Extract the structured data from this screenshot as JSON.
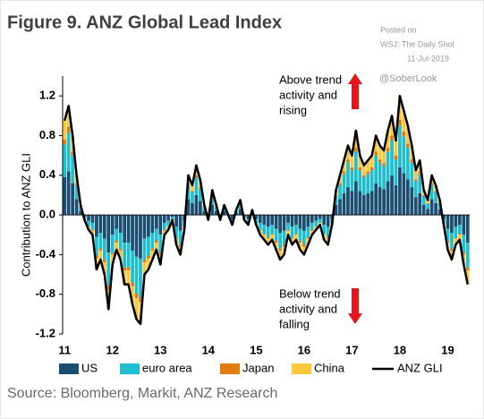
{
  "chart_data": {
    "type": "bar",
    "stacked": true,
    "title": "Figure 9. ANZ Global Lead Index",
    "ylabel": "Contribution to ANZ GLI",
    "annotations": {
      "above": [
        "Above trend",
        "activity and",
        "rising"
      ],
      "below": [
        "Below trend",
        "activity and",
        "falling"
      ]
    },
    "watermark": [
      "Posted on",
      "WSJ: The Daily Shot",
      "11-Jul-2019",
      "@SoberLook"
    ],
    "source": "Source: Bloomberg, Markit, ANZ Research",
    "categories": [
      "11",
      null,
      null,
      null,
      null,
      null,
      null,
      null,
      null,
      null,
      null,
      null,
      "12",
      null,
      null,
      null,
      null,
      null,
      null,
      null,
      null,
      null,
      null,
      null,
      "13",
      null,
      null,
      null,
      null,
      null,
      null,
      null,
      null,
      null,
      null,
      null,
      "14",
      null,
      null,
      null,
      null,
      null,
      null,
      null,
      null,
      null,
      null,
      null,
      "15",
      null,
      null,
      null,
      null,
      null,
      null,
      null,
      null,
      null,
      null,
      null,
      "16",
      null,
      null,
      null,
      null,
      null,
      null,
      null,
      null,
      null,
      null,
      null,
      "17",
      null,
      null,
      null,
      null,
      null,
      null,
      null,
      null,
      null,
      null,
      null,
      "18",
      null,
      null,
      null,
      null,
      null,
      null,
      null,
      null,
      null,
      null,
      null,
      "19",
      null,
      null,
      null,
      null,
      null
    ],
    "series": [
      {
        "name": "US",
        "color": "#1b4f72",
        "values": [
          0.38,
          0.44,
          0.32,
          0.16,
          0.04,
          -0.02,
          -0.06,
          -0.08,
          -0.22,
          -0.18,
          -0.24,
          -0.38,
          -0.2,
          -0.14,
          -0.18,
          -0.28,
          -0.28,
          -0.36,
          -0.42,
          -0.44,
          -0.24,
          -0.22,
          -0.18,
          -0.14,
          -0.2,
          -0.08,
          -0.06,
          -0.02,
          -0.12,
          -0.16,
          -0.06,
          0.16,
          0.12,
          0.2,
          0.14,
          0.04,
          -0.02,
          0.1,
          0.04,
          -0.02,
          0.04,
          0,
          -0.04,
          0.02,
          0.06,
          -0.02,
          -0.04,
          0.02,
          -0.04,
          -0.08,
          -0.1,
          -0.12,
          -0.1,
          -0.14,
          -0.18,
          -0.16,
          -0.08,
          -0.12,
          -0.1,
          -0.14,
          -0.16,
          -0.12,
          -0.08,
          -0.06,
          -0.04,
          -0.1,
          -0.12,
          -0.04,
          0.1,
          0.16,
          0.22,
          0.28,
          0.24,
          0.34,
          0.24,
          0.2,
          0.22,
          0.24,
          0.32,
          0.28,
          0.26,
          0.34,
          0.4,
          0.3,
          0.48,
          0.42,
          0.36,
          0.28,
          0.18,
          0.22,
          0.1,
          0.06,
          0.16,
          0.12,
          0.06,
          -0.04,
          -0.14,
          -0.18,
          -0.12,
          -0.1,
          -0.2,
          -0.28
        ]
      },
      {
        "name": "euro area",
        "color": "#1fbfd0",
        "values": [
          0.33,
          0.39,
          0.28,
          0.14,
          0.04,
          -0.02,
          -0.05,
          -0.07,
          -0.19,
          -0.16,
          -0.21,
          -0.33,
          -0.18,
          -0.12,
          -0.16,
          -0.25,
          -0.25,
          -0.32,
          -0.37,
          -0.39,
          -0.21,
          -0.19,
          -0.16,
          -0.12,
          -0.18,
          -0.07,
          -0.05,
          -0.02,
          -0.11,
          -0.14,
          -0.05,
          0.14,
          0.11,
          0.18,
          0.12,
          0.04,
          -0.02,
          0.09,
          0.04,
          -0.02,
          0.04,
          0,
          -0.04,
          0.02,
          0.05,
          -0.02,
          -0.04,
          0.02,
          -0.04,
          -0.07,
          -0.09,
          -0.11,
          -0.09,
          -0.12,
          -0.16,
          -0.14,
          -0.07,
          -0.11,
          -0.09,
          -0.12,
          -0.14,
          -0.11,
          -0.07,
          -0.05,
          -0.04,
          -0.09,
          -0.11,
          -0.04,
          0.09,
          0.14,
          0.19,
          0.25,
          0.21,
          0.3,
          0.21,
          0.18,
          0.19,
          0.21,
          0.28,
          0.25,
          0.23,
          0.3,
          0.35,
          0.26,
          0.42,
          0.37,
          0.32,
          0.25,
          0.16,
          0.19,
          0.09,
          0.05,
          0.14,
          0.11,
          0.05,
          -0.04,
          -0.12,
          -0.16,
          -0.11,
          -0.09,
          -0.18,
          -0.25
        ]
      },
      {
        "name": "Japan",
        "color": "#e07b10",
        "values": [
          0.05,
          0.06,
          0.04,
          0.02,
          0,
          0,
          -0.01,
          -0.01,
          -0.03,
          -0.02,
          -0.03,
          -0.05,
          -0.02,
          -0.02,
          -0.02,
          -0.03,
          -0.03,
          -0.04,
          -0.05,
          -0.05,
          -0.03,
          -0.03,
          -0.02,
          -0.02,
          -0.02,
          -0.01,
          -0.01,
          0,
          -0.01,
          -0.02,
          -0.01,
          0.02,
          0.01,
          0.02,
          0.02,
          0,
          0,
          0.01,
          0,
          0,
          0,
          0,
          0,
          0,
          0.01,
          0,
          0,
          0,
          0,
          -0.01,
          -0.01,
          -0.01,
          -0.01,
          -0.02,
          -0.02,
          -0.02,
          -0.01,
          -0.01,
          -0.01,
          -0.02,
          -0.02,
          -0.01,
          -0.01,
          -0.01,
          0,
          -0.01,
          -0.01,
          0,
          0.01,
          0.02,
          0.03,
          0.03,
          0.03,
          0.04,
          0.03,
          0.02,
          0.03,
          0.03,
          0.04,
          0.03,
          0.03,
          0.04,
          0.05,
          0.04,
          0.06,
          0.05,
          0.04,
          0.03,
          0.02,
          0.03,
          0.01,
          0.01,
          0.02,
          0.01,
          0.01,
          0,
          -0.02,
          -0.02,
          -0.01,
          -0.01,
          -0.02,
          -0.03
        ]
      },
      {
        "name": "China",
        "color": "#f9c83b",
        "values": [
          0.19,
          0.21,
          0.16,
          0.08,
          0.02,
          -0.01,
          -0.03,
          -0.04,
          -0.11,
          -0.09,
          -0.12,
          -0.19,
          -0.1,
          -0.07,
          -0.09,
          -0.14,
          -0.14,
          -0.18,
          -0.21,
          -0.22,
          -0.12,
          -0.11,
          -0.09,
          -0.07,
          -0.1,
          -0.04,
          -0.03,
          -0.01,
          -0.06,
          -0.08,
          -0.03,
          0.08,
          0.06,
          0.1,
          0.07,
          0.02,
          -0.01,
          0.05,
          0.02,
          -0.01,
          0.02,
          0,
          -0.02,
          0.01,
          0.03,
          -0.01,
          -0.02,
          0.01,
          -0.02,
          -0.04,
          -0.05,
          -0.06,
          -0.05,
          -0.07,
          -0.09,
          -0.08,
          -0.04,
          -0.06,
          -0.05,
          -0.07,
          -0.08,
          -0.06,
          -0.04,
          -0.03,
          -0.02,
          -0.05,
          -0.06,
          -0.02,
          0.05,
          0.08,
          0.11,
          0.14,
          0.12,
          0.17,
          0.12,
          0.1,
          0.11,
          0.12,
          0.16,
          0.14,
          0.13,
          0.17,
          0.2,
          0.15,
          0.24,
          0.21,
          0.18,
          0.14,
          0.09,
          0.11,
          0.05,
          0.03,
          0.08,
          0.06,
          0.03,
          -0.02,
          -0.07,
          -0.09,
          -0.06,
          -0.05,
          -0.1,
          -0.14
        ]
      },
      {
        "name": "ANZ GLI",
        "type": "line",
        "color": "#000000",
        "values": [
          0.95,
          1.1,
          0.8,
          0.4,
          0.1,
          -0.05,
          -0.15,
          -0.2,
          -0.55,
          -0.45,
          -0.6,
          -0.95,
          -0.5,
          -0.35,
          -0.45,
          -0.7,
          -0.7,
          -0.9,
          -1.05,
          -1.1,
          -0.6,
          -0.55,
          -0.45,
          -0.35,
          -0.5,
          -0.2,
          -0.15,
          -0.05,
          -0.3,
          -0.4,
          -0.15,
          0.4,
          0.3,
          0.5,
          0.35,
          0.1,
          -0.05,
          0.25,
          0.1,
          -0.05,
          0.1,
          0,
          -0.1,
          0.05,
          0.15,
          -0.05,
          -0.1,
          0.05,
          -0.1,
          -0.2,
          -0.25,
          -0.3,
          -0.25,
          -0.35,
          -0.45,
          -0.4,
          -0.2,
          -0.3,
          -0.25,
          -0.35,
          -0.4,
          -0.3,
          -0.2,
          -0.15,
          -0.1,
          -0.25,
          -0.3,
          -0.1,
          0.25,
          0.4,
          0.55,
          0.7,
          0.6,
          0.85,
          0.6,
          0.5,
          0.55,
          0.6,
          0.8,
          0.7,
          0.65,
          0.85,
          1.0,
          0.75,
          1.2,
          1.05,
          0.9,
          0.7,
          0.45,
          0.55,
          0.25,
          0.15,
          0.4,
          0.3,
          0.15,
          -0.1,
          -0.35,
          -0.45,
          -0.3,
          -0.25,
          -0.5,
          -0.7
        ]
      }
    ],
    "ylim": [
      -1.2,
      1.4
    ],
    "yticks": [
      1.2,
      0.8,
      0.4,
      {
        "value": 0,
        "label": "0.0"
      },
      -0.4,
      -0.8,
      -1.2
    ],
    "legend": "bottom"
  }
}
